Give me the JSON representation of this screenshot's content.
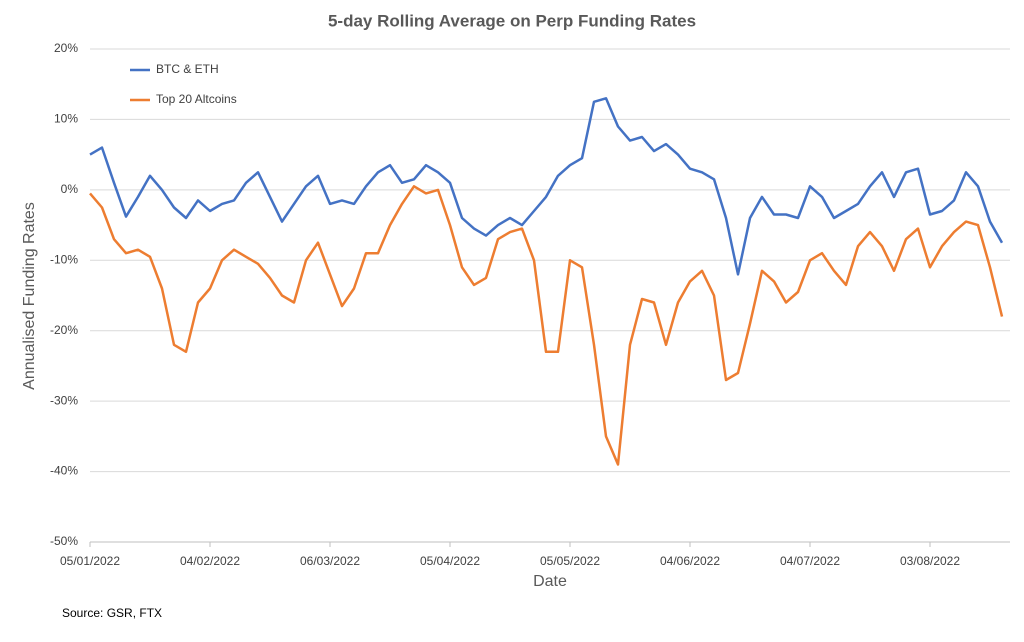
{
  "chart_data": {
    "type": "line",
    "title": "5-day Rolling Average on Perp Funding Rates",
    "xlabel": "Date",
    "ylabel": "Annualised Funding Rates",
    "source": "Source: GSR, FTX",
    "x": [
      "05/01/2022",
      "08/01/2022",
      "11/01/2022",
      "14/01/2022",
      "17/01/2022",
      "20/01/2022",
      "23/01/2022",
      "26/01/2022",
      "29/01/2022",
      "01/02/2022",
      "04/02/2022",
      "07/02/2022",
      "10/02/2022",
      "13/02/2022",
      "16/02/2022",
      "19/02/2022",
      "22/02/2022",
      "25/02/2022",
      "28/02/2022",
      "03/03/2022",
      "06/03/2022",
      "09/03/2022",
      "12/03/2022",
      "15/03/2022",
      "18/03/2022",
      "21/03/2022",
      "24/03/2022",
      "27/03/2022",
      "30/03/2022",
      "02/04/2022",
      "05/04/2022",
      "08/04/2022",
      "11/04/2022",
      "14/04/2022",
      "17/04/2022",
      "20/04/2022",
      "23/04/2022",
      "26/04/2022",
      "29/04/2022",
      "02/05/2022",
      "05/05/2022",
      "08/05/2022",
      "11/05/2022",
      "14/05/2022",
      "17/05/2022",
      "20/05/2022",
      "23/05/2022",
      "26/05/2022",
      "29/05/2022",
      "01/06/2022",
      "04/06/2022",
      "07/06/2022",
      "10/06/2022",
      "13/06/2022",
      "16/06/2022",
      "19/06/2022",
      "22/06/2022",
      "25/06/2022",
      "28/06/2022",
      "01/07/2022",
      "04/07/2022",
      "07/07/2022",
      "10/07/2022",
      "13/07/2022",
      "16/07/2022",
      "19/07/2022",
      "22/07/2022",
      "25/07/2022",
      "28/07/2022",
      "31/07/2022",
      "03/08/2022",
      "06/08/2022",
      "09/08/2022",
      "12/08/2022",
      "15/08/2022",
      "18/08/2022",
      "21/08/2022"
    ],
    "series": [
      {
        "name": "BTC & ETH",
        "color": "#4472c4",
        "values": [
          5,
          6,
          1,
          -3.8,
          -1,
          2,
          0,
          -2.5,
          -4,
          -1.5,
          -3,
          -2,
          -1.5,
          1,
          2.5,
          -1,
          -4.5,
          -2,
          0.5,
          2,
          -2,
          -1.5,
          -2,
          0.5,
          2.5,
          3.5,
          1,
          1.5,
          3.5,
          2.5,
          1,
          -4,
          -5.5,
          -6.5,
          -5,
          -4,
          -5,
          -3,
          -1,
          2,
          3.5,
          4.5,
          12.5,
          13,
          9,
          7,
          7.5,
          5.5,
          6.5,
          5,
          3,
          2.5,
          1.5,
          -4,
          -12,
          -4,
          -1,
          -3.5,
          -3.5,
          -4,
          0.5,
          -1,
          -4,
          -3,
          -2,
          0.5,
          2.5,
          -1,
          2.5,
          3,
          -3.5,
          -3,
          -1.5,
          2.5,
          0.5,
          -4.5,
          -7.5
        ]
      },
      {
        "name": "Top 20 Altcoins",
        "color": "#ed7d31",
        "values": [
          -0.5,
          -2.5,
          -7,
          -9,
          -8.5,
          -9.5,
          -14,
          -22,
          -23,
          -16,
          -14,
          -10,
          -8.5,
          -9.5,
          -10.5,
          -12.5,
          -15,
          -16,
          -10,
          -7.5,
          -12,
          -16.5,
          -14,
          -9,
          -9,
          -5,
          -2,
          0.5,
          -0.5,
          0,
          -5,
          -11,
          -13.5,
          -12.5,
          -7,
          -6,
          -5.5,
          -10,
          -23,
          -23,
          -10,
          -11,
          -22,
          -35,
          -39,
          -22,
          -15.5,
          -16,
          -22,
          -16,
          -13,
          -11.5,
          -15,
          -27,
          -26,
          -19,
          -11.5,
          -13,
          -16,
          -14.5,
          -10,
          -9,
          -11.5,
          -13.5,
          -8,
          -6,
          -8,
          -11.5,
          -7,
          -5.5,
          -11,
          -8,
          -6,
          -4.5,
          -5,
          -11,
          -18
        ]
      }
    ],
    "xlim": [
      "05/01/2022",
      "23/08/2022"
    ],
    "xticks": [
      "05/01/2022",
      "04/02/2022",
      "06/03/2022",
      "05/04/2022",
      "05/05/2022",
      "04/06/2022",
      "04/07/2022",
      "03/08/2022"
    ],
    "ylim": [
      -50,
      20
    ],
    "yticks": [
      {
        "value": -50,
        "label": "-50%"
      },
      {
        "value": -40,
        "label": "-40%"
      },
      {
        "value": -30,
        "label": "-30%"
      },
      {
        "value": -20,
        "label": "-20%"
      },
      {
        "value": -10,
        "label": "-10%"
      },
      {
        "value": 0,
        "label": "0%"
      },
      {
        "value": 10,
        "label": "10%"
      },
      {
        "value": 20,
        "label": "20%"
      }
    ],
    "grid": true,
    "legend": "top-left"
  }
}
